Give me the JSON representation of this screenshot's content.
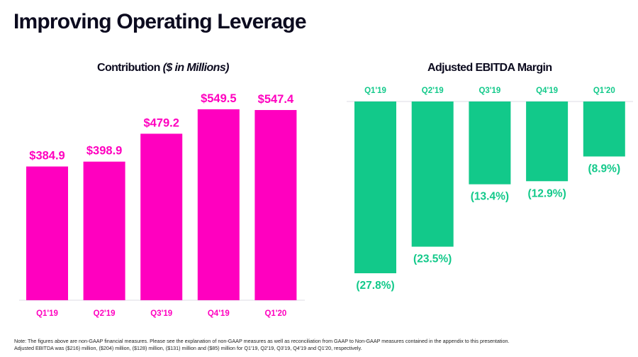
{
  "page": {
    "title": "Improving Operating Leverage",
    "note_line1": "Note:  The figures above are non-GAAP financial measures.  Please see the explanation of non-GAAP measures as well as reconciliation from GAAP to Non-GAAP measures contained in the appendix to this presentation.",
    "note_line2": "Adjusted EBITDA was ($216) million, ($204) million, ($128) million, ($131) million and ($85) million for Q1'19, Q2'19, Q3'19, Q4'19 and Q1'20, respectively."
  },
  "colors": {
    "contribution": "#ff00bf",
    "ebitda": "#12c98a",
    "axis": "#e4e2ea",
    "title": "#0c0b1f"
  },
  "chart_data": [
    {
      "type": "bar",
      "title": "Contribution",
      "subtitle": "($ in Millions)",
      "categories": [
        "Q1'19",
        "Q2'19",
        "Q3'19",
        "Q4'19",
        "Q1'20"
      ],
      "values": [
        384.9,
        398.9,
        479.2,
        549.5,
        547.4
      ],
      "labels": [
        "$384.9",
        "$398.9",
        "$479.2",
        "$549.5",
        "$547.4"
      ],
      "xlabel": "",
      "ylabel": "",
      "ylim": [
        0,
        700
      ],
      "grid": false,
      "legend": "none"
    },
    {
      "type": "bar",
      "title": "Adjusted EBITDA Margin",
      "categories": [
        "Q1'19",
        "Q2'19",
        "Q3'19",
        "Q4'19",
        "Q1'20"
      ],
      "values": [
        -27.8,
        -23.5,
        -13.4,
        -12.9,
        -8.9
      ],
      "labels": [
        "(27.8%)",
        "(23.5%)",
        "(13.4%)",
        "(12.9%)",
        "(8.9%)"
      ],
      "xlabel": "",
      "ylabel": "",
      "ylim": [
        -32,
        0
      ],
      "grid": false,
      "legend": "none"
    }
  ]
}
